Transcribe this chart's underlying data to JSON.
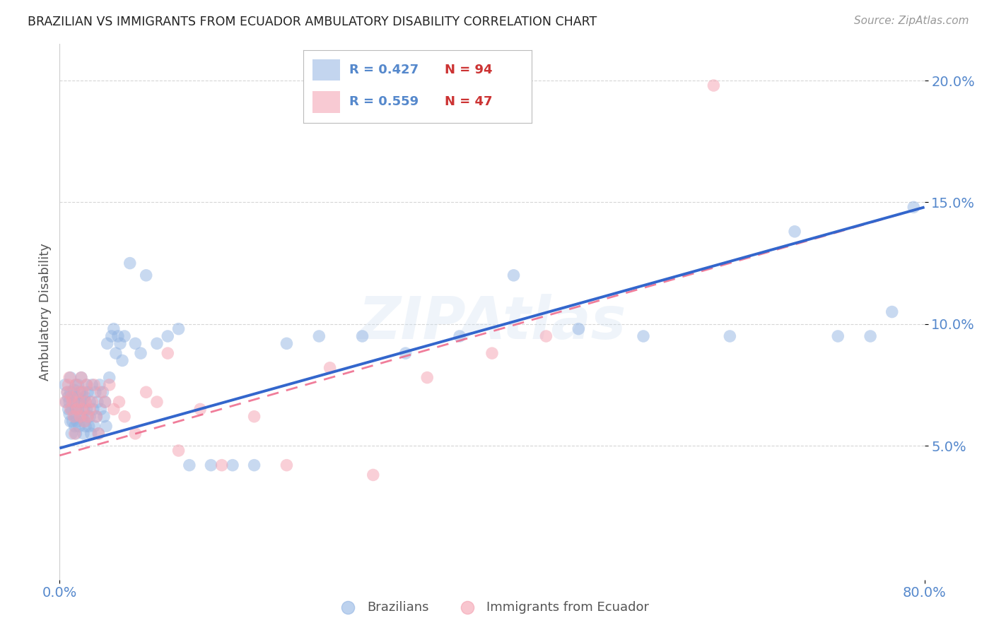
{
  "title": "BRAZILIAN VS IMMIGRANTS FROM ECUADOR AMBULATORY DISABILITY CORRELATION CHART",
  "source": "Source: ZipAtlas.com",
  "ylabel": "Ambulatory Disability",
  "xlabel": "",
  "xlim": [
    0.0,
    0.8
  ],
  "ylim": [
    -0.005,
    0.215
  ],
  "ytick_vals": [
    0.05,
    0.1,
    0.15,
    0.2
  ],
  "ytick_labels": [
    "5.0%",
    "10.0%",
    "15.0%",
    "20.0%"
  ],
  "xtick_vals": [
    0.0,
    0.8
  ],
  "xtick_labels": [
    "0.0%",
    "80.0%"
  ],
  "legend_blue_r": "R = 0.427",
  "legend_blue_n": "N = 94",
  "legend_pink_r": "R = 0.559",
  "legend_pink_n": "N = 47",
  "blue_color": "#92B4E3",
  "pink_color": "#F4A0B0",
  "blue_line_color": "#3366CC",
  "pink_line_color": "#EE6688",
  "tick_color": "#5588CC",
  "n_color": "#CC3333",
  "watermark": "ZIPAtlas",
  "background_color": "#FFFFFF",
  "blue_line_start_y": 0.049,
  "blue_line_end_y": 0.148,
  "pink_line_start_y": 0.046,
  "pink_line_end_y": 0.148,
  "blue_x": [
    0.005,
    0.006,
    0.007,
    0.008,
    0.008,
    0.009,
    0.009,
    0.01,
    0.01,
    0.01,
    0.011,
    0.011,
    0.012,
    0.012,
    0.013,
    0.013,
    0.014,
    0.014,
    0.015,
    0.015,
    0.015,
    0.016,
    0.016,
    0.017,
    0.017,
    0.018,
    0.018,
    0.019,
    0.019,
    0.02,
    0.02,
    0.021,
    0.021,
    0.022,
    0.022,
    0.023,
    0.023,
    0.024,
    0.024,
    0.025,
    0.025,
    0.026,
    0.026,
    0.027,
    0.028,
    0.028,
    0.029,
    0.03,
    0.031,
    0.032,
    0.033,
    0.034,
    0.035,
    0.036,
    0.037,
    0.038,
    0.04,
    0.041,
    0.042,
    0.043,
    0.044,
    0.046,
    0.048,
    0.05,
    0.052,
    0.054,
    0.056,
    0.058,
    0.06,
    0.065,
    0.07,
    0.075,
    0.08,
    0.09,
    0.1,
    0.11,
    0.12,
    0.14,
    0.16,
    0.18,
    0.21,
    0.24,
    0.28,
    0.32,
    0.37,
    0.42,
    0.48,
    0.54,
    0.62,
    0.68,
    0.72,
    0.75,
    0.77,
    0.79
  ],
  "blue_y": [
    0.075,
    0.068,
    0.072,
    0.065,
    0.07,
    0.063,
    0.068,
    0.072,
    0.06,
    0.078,
    0.065,
    0.055,
    0.07,
    0.06,
    0.068,
    0.073,
    0.062,
    0.058,
    0.075,
    0.065,
    0.055,
    0.07,
    0.06,
    0.075,
    0.065,
    0.068,
    0.058,
    0.072,
    0.062,
    0.078,
    0.068,
    0.062,
    0.072,
    0.065,
    0.055,
    0.07,
    0.06,
    0.068,
    0.058,
    0.075,
    0.065,
    0.062,
    0.072,
    0.058,
    0.068,
    0.062,
    0.055,
    0.075,
    0.065,
    0.058,
    0.072,
    0.062,
    0.068,
    0.055,
    0.075,
    0.065,
    0.072,
    0.062,
    0.068,
    0.058,
    0.092,
    0.078,
    0.095,
    0.098,
    0.088,
    0.095,
    0.092,
    0.085,
    0.095,
    0.125,
    0.092,
    0.088,
    0.12,
    0.092,
    0.095,
    0.098,
    0.042,
    0.042,
    0.042,
    0.042,
    0.092,
    0.095,
    0.095,
    0.088,
    0.095,
    0.12,
    0.098,
    0.095,
    0.095,
    0.138,
    0.095,
    0.095,
    0.105,
    0.148
  ],
  "pink_x": [
    0.005,
    0.007,
    0.008,
    0.009,
    0.01,
    0.011,
    0.012,
    0.013,
    0.014,
    0.015,
    0.016,
    0.017,
    0.018,
    0.019,
    0.02,
    0.021,
    0.022,
    0.023,
    0.024,
    0.025,
    0.026,
    0.028,
    0.03,
    0.032,
    0.034,
    0.036,
    0.038,
    0.042,
    0.046,
    0.05,
    0.055,
    0.06,
    0.07,
    0.08,
    0.09,
    0.1,
    0.11,
    0.13,
    0.15,
    0.18,
    0.21,
    0.25,
    0.29,
    0.34,
    0.4,
    0.45,
    0.605
  ],
  "pink_y": [
    0.068,
    0.072,
    0.075,
    0.078,
    0.065,
    0.07,
    0.068,
    0.062,
    0.055,
    0.075,
    0.065,
    0.072,
    0.068,
    0.062,
    0.078,
    0.065,
    0.072,
    0.06,
    0.068,
    0.075,
    0.062,
    0.065,
    0.068,
    0.075,
    0.062,
    0.055,
    0.072,
    0.068,
    0.075,
    0.065,
    0.068,
    0.062,
    0.055,
    0.072,
    0.068,
    0.088,
    0.048,
    0.065,
    0.042,
    0.062,
    0.042,
    0.082,
    0.038,
    0.078,
    0.088,
    0.095,
    0.198
  ]
}
